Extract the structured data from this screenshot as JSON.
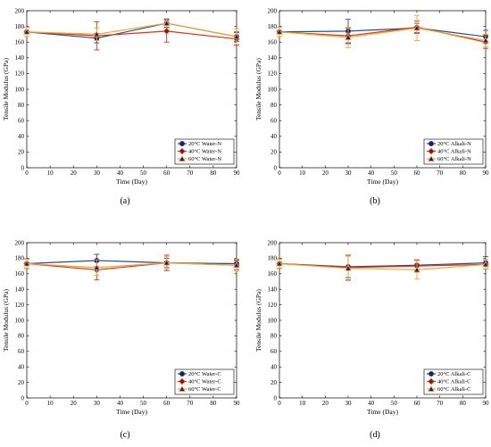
{
  "chart_data": [
    {
      "type": "line",
      "panel_label": "(a)",
      "xlabel": "Time (Day)",
      "ylabel": "Tensile Modulus (GPa)",
      "xlim": [
        0,
        90
      ],
      "ylim": [
        0,
        200
      ],
      "xticks": [
        0,
        10,
        20,
        30,
        40,
        50,
        60,
        70,
        80,
        90
      ],
      "yticks": [
        0,
        20,
        40,
        60,
        80,
        100,
        120,
        140,
        160,
        180,
        200
      ],
      "legend_position": "bottom-right",
      "x": [
        0,
        30,
        60,
        90
      ],
      "series": [
        {
          "name": "20°C Water-N",
          "color": "#1f4e9c",
          "marker": "circle",
          "values": [
            173,
            165,
            184,
            167
          ],
          "errors": [
            6,
            6,
            5,
            6
          ]
        },
        {
          "name": "40°C Water-N",
          "color": "#e03010",
          "marker": "diamond",
          "values": [
            173,
            168,
            174,
            164
          ],
          "errors": [
            6,
            18,
            14,
            8
          ]
        },
        {
          "name": "60°C Water-N",
          "color": "#f0a828",
          "marker": "triangle",
          "values": [
            173,
            170,
            184,
            167
          ],
          "errors": [
            6,
            8,
            6,
            10
          ]
        }
      ]
    },
    {
      "type": "line",
      "panel_label": "(b)",
      "xlabel": "Time (Day)",
      "ylabel": "Tensile Modulus (GPa)",
      "xlim": [
        0,
        90
      ],
      "ylim": [
        0,
        200
      ],
      "xticks": [
        0,
        10,
        20,
        30,
        40,
        50,
        60,
        70,
        80,
        90
      ],
      "yticks": [
        0,
        20,
        40,
        60,
        80,
        100,
        120,
        140,
        160,
        180,
        200
      ],
      "legend_position": "bottom-right",
      "x": [
        0,
        30,
        60,
        90
      ],
      "series": [
        {
          "name": "20°C Alkali-N",
          "color": "#1f4e9c",
          "marker": "circle",
          "values": [
            173,
            174,
            178,
            167
          ],
          "errors": [
            6,
            15,
            6,
            8
          ]
        },
        {
          "name": "40°C Alkali-N",
          "color": "#e03010",
          "marker": "diamond",
          "values": [
            173,
            168,
            179,
            160
          ],
          "errors": [
            6,
            10,
            8,
            8
          ]
        },
        {
          "name": "60°C Alkali-N",
          "color": "#f0a828",
          "marker": "triangle",
          "values": [
            173,
            166,
            178,
            162
          ],
          "errors": [
            6,
            13,
            16,
            8
          ]
        }
      ]
    },
    {
      "type": "line",
      "panel_label": "(c)",
      "xlabel": "Time (Day)",
      "ylabel": "Tensile Modulus (GPa)",
      "xlim": [
        0,
        90
      ],
      "ylim": [
        0,
        200
      ],
      "xticks": [
        0,
        10,
        20,
        30,
        40,
        50,
        60,
        70,
        80,
        90
      ],
      "yticks": [
        0,
        20,
        40,
        60,
        80,
        100,
        120,
        140,
        160,
        180,
        200
      ],
      "legend_position": "bottom-right",
      "x": [
        0,
        30,
        60,
        90
      ],
      "series": [
        {
          "name": "20°C Water-C",
          "color": "#1f4e9c",
          "marker": "circle",
          "values": [
            173,
            177,
            174,
            173
          ],
          "errors": [
            6,
            8,
            6,
            5
          ]
        },
        {
          "name": "40°C Water-C",
          "color": "#e03010",
          "marker": "diamond",
          "values": [
            173,
            165,
            174,
            171
          ],
          "errors": [
            6,
            13,
            10,
            6
          ]
        },
        {
          "name": "60°C Water-C",
          "color": "#f0a828",
          "marker": "triangle",
          "values": [
            173,
            168,
            174,
            171
          ],
          "errors": [
            6,
            10,
            8,
            8
          ]
        }
      ]
    },
    {
      "type": "line",
      "panel_label": "(d)",
      "xlabel": "Time (Day)",
      "ylabel": "Tensile Modulus (GPa)",
      "xlim": [
        0,
        90
      ],
      "ylim": [
        0,
        200
      ],
      "xticks": [
        0,
        10,
        20,
        30,
        40,
        50,
        60,
        70,
        80,
        90
      ],
      "yticks": [
        0,
        20,
        40,
        60,
        80,
        100,
        120,
        140,
        160,
        180,
        200
      ],
      "legend_position": "bottom-right",
      "x": [
        0,
        30,
        60,
        90
      ],
      "series": [
        {
          "name": "20°C Alkali-C",
          "color": "#1f4e9c",
          "marker": "circle",
          "values": [
            173,
            169,
            171,
            174
          ],
          "errors": [
            6,
            14,
            6,
            8
          ]
        },
        {
          "name": "40°C Alkali-C",
          "color": "#e03010",
          "marker": "diamond",
          "values": [
            173,
            168,
            170,
            172
          ],
          "errors": [
            6,
            16,
            8,
            6
          ]
        },
        {
          "name": "60°C Alkali-C",
          "color": "#f0a828",
          "marker": "triangle",
          "values": [
            173,
            167,
            165,
            172
          ],
          "errors": [
            6,
            16,
            12,
            6
          ]
        }
      ]
    }
  ]
}
